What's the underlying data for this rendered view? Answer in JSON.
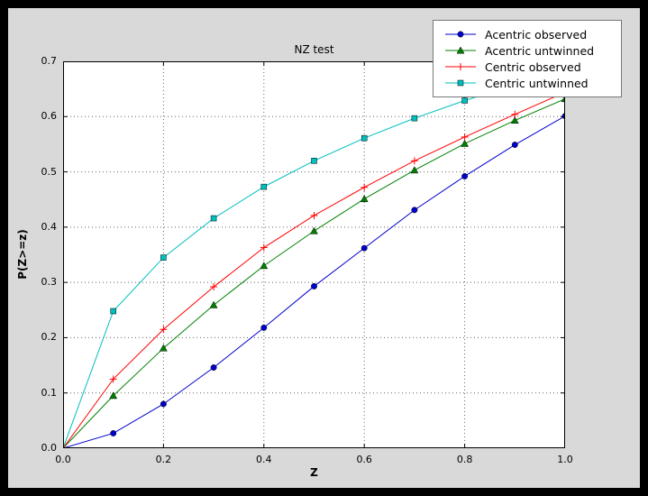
{
  "figure": {
    "outer_background": "#000000",
    "background": "#d9d9d9",
    "plot_background": "#ffffff",
    "grid_color": "#666666",
    "frame_color": "#000000"
  },
  "chart_data": {
    "type": "line",
    "title": "NZ test",
    "xlabel": "Z",
    "ylabel": "P(Z>=z)",
    "xlim": [
      0.0,
      1.0
    ],
    "ylim": [
      0.0,
      0.7
    ],
    "xticks": [
      0.0,
      0.2,
      0.4,
      0.6,
      0.8,
      1.0
    ],
    "xtick_labels": [
      "0.0",
      "0.2",
      "0.4",
      "0.6",
      "0.8",
      "1.0"
    ],
    "yticks": [
      0.0,
      0.1,
      0.2,
      0.3,
      0.4,
      0.5,
      0.6,
      0.7
    ],
    "ytick_labels": [
      "0.0",
      "0.1",
      "0.2",
      "0.3",
      "0.4",
      "0.5",
      "0.6",
      "0.7"
    ],
    "grid": true,
    "grid_style": "dotted",
    "legend_position": "upper right",
    "x": [
      0.0,
      0.1,
      0.2,
      0.3,
      0.4,
      0.5,
      0.6,
      0.7,
      0.8,
      0.9,
      1.0
    ],
    "series": [
      {
        "name": "Acentric observed",
        "color": "#0000cc",
        "marker": "circle",
        "values": [
          0.0,
          0.027,
          0.08,
          0.146,
          0.218,
          0.293,
          0.362,
          0.431,
          0.492,
          0.549,
          0.601
        ]
      },
      {
        "name": "Acentric untwinned",
        "color": "#008000",
        "marker": "triangle-up",
        "values": [
          0.0,
          0.095,
          0.181,
          0.259,
          0.33,
          0.393,
          0.451,
          0.503,
          0.551,
          0.593,
          0.632
        ]
      },
      {
        "name": "Centric observed",
        "color": "#ff0000",
        "marker": "plus",
        "values": [
          0.0,
          0.125,
          0.215,
          0.292,
          0.363,
          0.421,
          0.472,
          0.52,
          0.563,
          0.604,
          0.644
        ]
      },
      {
        "name": "Centric untwinned",
        "color": "#00bfbf",
        "marker": "square",
        "values": [
          0.0,
          0.248,
          0.345,
          0.416,
          0.473,
          0.52,
          0.561,
          0.597,
          0.629,
          0.657,
          0.683
        ]
      }
    ]
  }
}
